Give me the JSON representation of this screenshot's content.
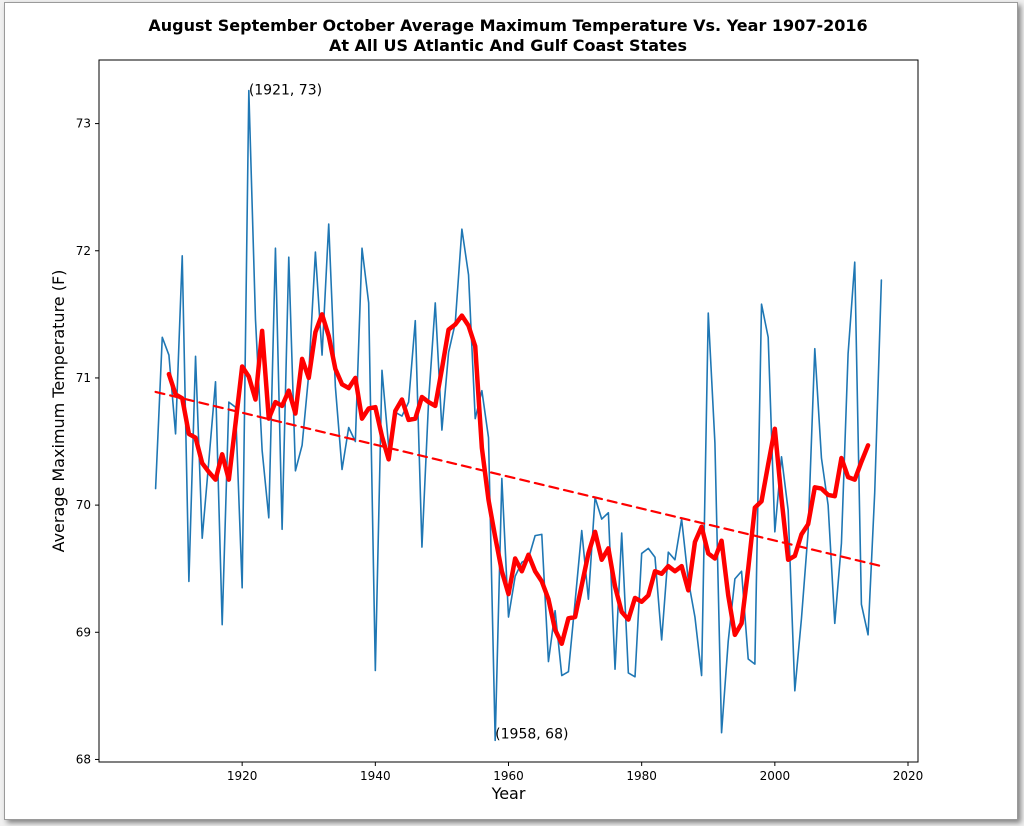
{
  "chart_data": {
    "type": "line",
    "title": "August September October Average Maximum Temperature Vs. Year 1907-2016",
    "subtitle": "At All US Atlantic And Gulf Coast States",
    "xlabel": "Year",
    "ylabel": "Average Maximum Temperature (F)",
    "xlim": [
      1898.5,
      2021.5
    ],
    "ylim": [
      67.98,
      73.5
    ],
    "xticks": [
      1920,
      1940,
      1960,
      1980,
      2000,
      2020
    ],
    "yticks": [
      68,
      69,
      70,
      71,
      72,
      73
    ],
    "grid": false,
    "colors": {
      "raw": "#1f77b4",
      "smooth": "#ff0000",
      "trend": "#ff0000"
    },
    "series": [
      {
        "style": "thin-blue-line",
        "x": [
          1907,
          1908,
          1909,
          1910,
          1911,
          1912,
          1913,
          1914,
          1915,
          1916,
          1917,
          1918,
          1919,
          1920,
          1921,
          1922,
          1923,
          1924,
          1925,
          1926,
          1927,
          1928,
          1929,
          1930,
          1931,
          1932,
          1933,
          1934,
          1935,
          1936,
          1937,
          1938,
          1939,
          1940,
          1941,
          1942,
          1943,
          1944,
          1945,
          1946,
          1947,
          1948,
          1949,
          1950,
          1951,
          1952,
          1953,
          1954,
          1955,
          1956,
          1957,
          1958,
          1959,
          1960,
          1961,
          1962,
          1963,
          1964,
          1965,
          1966,
          1967,
          1968,
          1969,
          1970,
          1971,
          1972,
          1973,
          1974,
          1975,
          1976,
          1977,
          1978,
          1979,
          1980,
          1981,
          1982,
          1983,
          1984,
          1985,
          1986,
          1987,
          1988,
          1989,
          1990,
          1991,
          1992,
          1993,
          1994,
          1995,
          1996,
          1997,
          1998,
          1999,
          2000,
          2001,
          2002,
          2003,
          2004,
          2005,
          2006,
          2007,
          2008,
          2009,
          2010,
          2011,
          2012,
          2013,
          2014,
          2015,
          2016
        ],
        "y": [
          70.13,
          71.32,
          71.18,
          70.56,
          71.96,
          69.4,
          71.17,
          69.74,
          70.35,
          70.97,
          69.06,
          70.81,
          70.77,
          69.35,
          73.26,
          71.46,
          70.43,
          69.9,
          72.02,
          69.81,
          71.95,
          70.27,
          70.47,
          71.03,
          71.99,
          71.18,
          72.21,
          70.93,
          70.28,
          70.61,
          70.5,
          72.02,
          71.59,
          68.7,
          71.06,
          70.46,
          70.73,
          70.7,
          70.81,
          71.45,
          69.67,
          70.82,
          71.59,
          70.59,
          71.2,
          71.43,
          72.17,
          71.81,
          70.68,
          70.9,
          70.53,
          68.15,
          70.21,
          69.12,
          69.44,
          69.55,
          69.58,
          69.76,
          69.77,
          68.77,
          69.17,
          68.66,
          68.69,
          69.24,
          69.8,
          69.26,
          70.06,
          69.89,
          69.94,
          68.71,
          69.78,
          68.68,
          68.65,
          69.62,
          69.66,
          69.59,
          68.94,
          69.63,
          69.57,
          69.89,
          69.41,
          69.12,
          68.66,
          71.51,
          70.49,
          68.21,
          68.93,
          69.42,
          69.48,
          68.79,
          68.75,
          71.58,
          71.32,
          69.79,
          70.38,
          69.96,
          68.54,
          69.11,
          69.79,
          71.23,
          70.37,
          70.0,
          69.07,
          69.7,
          71.19,
          71.91,
          69.22,
          68.98,
          70.1,
          71.77
        ]
      },
      {
        "style": "thick-red-smoothed",
        "x": [
          1909,
          1910,
          1911,
          1912,
          1913,
          1914,
          1915,
          1916,
          1917,
          1918,
          1919,
          1920,
          1921,
          1922,
          1923,
          1924,
          1925,
          1926,
          1927,
          1928,
          1929,
          1930,
          1931,
          1932,
          1933,
          1934,
          1935,
          1936,
          1937,
          1938,
          1939,
          1940,
          1941,
          1942,
          1943,
          1944,
          1945,
          1946,
          1947,
          1948,
          1949,
          1950,
          1951,
          1952,
          1953,
          1954,
          1955,
          1956,
          1957,
          1958,
          1959,
          1960,
          1961,
          1962,
          1963,
          1964,
          1965,
          1966,
          1967,
          1968,
          1969,
          1970,
          1971,
          1972,
          1973,
          1974,
          1975,
          1976,
          1977,
          1978,
          1979,
          1980,
          1981,
          1982,
          1983,
          1984,
          1985,
          1986,
          1987,
          1988,
          1989,
          1990,
          1991,
          1992,
          1993,
          1994,
          1995,
          1996,
          1997,
          1998,
          1999,
          2000,
          2001,
          2002,
          2003,
          2004,
          2005,
          2006,
          2007,
          2008,
          2009,
          2010,
          2011,
          2012,
          2013,
          2014
        ],
        "y": [
          71.03,
          70.87,
          70.84,
          70.56,
          70.53,
          70.33,
          70.26,
          70.2,
          70.4,
          70.2,
          70.64,
          71.09,
          71.01,
          70.83,
          71.37,
          70.68,
          70.81,
          70.78,
          70.9,
          70.72,
          71.15,
          71.0,
          71.36,
          71.5,
          71.33,
          71.07,
          70.95,
          70.92,
          71.0,
          70.68,
          70.76,
          70.77,
          70.54,
          70.36,
          70.74,
          70.83,
          70.67,
          70.68,
          70.85,
          70.81,
          70.78,
          71.07,
          71.38,
          71.42,
          71.49,
          71.41,
          71.25,
          70.45,
          70.04,
          69.75,
          69.48,
          69.3,
          69.58,
          69.48,
          69.61,
          69.48,
          69.4,
          69.26,
          69.02,
          68.91,
          69.11,
          69.12,
          69.37,
          69.62,
          69.79,
          69.57,
          69.66,
          69.36,
          69.16,
          69.1,
          69.27,
          69.24,
          69.29,
          69.48,
          69.46,
          69.52,
          69.48,
          69.52,
          69.33,
          69.71,
          69.83,
          69.62,
          69.58,
          69.72,
          69.29,
          68.98,
          69.07,
          69.5,
          69.98,
          70.03,
          70.32,
          70.6,
          70.05,
          69.57,
          69.6,
          69.77,
          69.85,
          70.14,
          70.13,
          70.08,
          70.07,
          70.37,
          70.22,
          70.2,
          70.34,
          70.47
        ]
      },
      {
        "style": "dashed-red-trend",
        "x": [
          1907,
          2016
        ],
        "y": [
          70.89,
          69.52
        ]
      }
    ],
    "annotations": [
      {
        "text": "(1921, 73)",
        "x": 1921,
        "y": 73.26
      },
      {
        "text": "(1958, 68)",
        "x": 1958,
        "y": 68.15
      }
    ]
  }
}
